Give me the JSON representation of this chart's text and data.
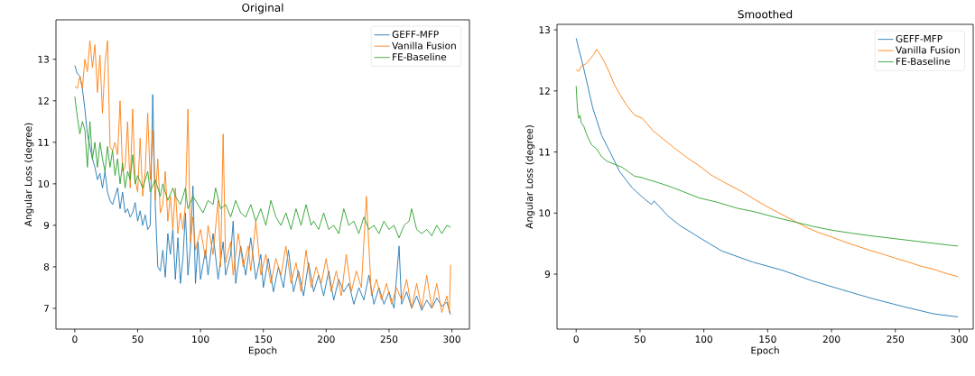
{
  "chart_data": [
    {
      "type": "line",
      "title": "Original",
      "xlabel": "Epoch",
      "ylabel": "Angular Loss (degree)",
      "xlim": [
        -15,
        314
      ],
      "ylim": [
        6.5,
        13.95
      ],
      "xticks": [
        0,
        50,
        100,
        150,
        200,
        250,
        300
      ],
      "yticks": [
        7,
        8,
        9,
        10,
        11,
        12,
        13
      ],
      "legend": "top right",
      "grid": false,
      "line_style": "solid",
      "series": [
        {
          "name": "GEFF-MFP",
          "color": "#1f77b4",
          "x": [
            0,
            2,
            4,
            6,
            8,
            10,
            12,
            14,
            16,
            18,
            20,
            22,
            24,
            26,
            28,
            30,
            32,
            34,
            36,
            38,
            40,
            42,
            44,
            46,
            48,
            50,
            52,
            54,
            56,
            58,
            60,
            62,
            64,
            66,
            68,
            70,
            72,
            74,
            76,
            78,
            80,
            82,
            84,
            86,
            88,
            90,
            92,
            94,
            96,
            98,
            100,
            104,
            106,
            110,
            114,
            118,
            120,
            124,
            126,
            128,
            132,
            136,
            140,
            144,
            148,
            150,
            154,
            158,
            162,
            166,
            170,
            174,
            178,
            182,
            186,
            190,
            194,
            198,
            202,
            206,
            210,
            214,
            218,
            222,
            226,
            230,
            234,
            238,
            242,
            246,
            250,
            254,
            258,
            260,
            264,
            268,
            272,
            276,
            280,
            284,
            288,
            292,
            296,
            299
          ],
          "values": [
            12.85,
            12.65,
            12.6,
            12.3,
            11.8,
            11.2,
            10.9,
            10.6,
            10.4,
            10.1,
            10.25,
            9.9,
            10.3,
            9.8,
            9.6,
            9.5,
            9.7,
            9.9,
            9.4,
            9.8,
            9.3,
            9.4,
            9.2,
            9.3,
            9.55,
            9.1,
            9.35,
            9.0,
            9.25,
            8.9,
            9.0,
            12.15,
            9.5,
            8.0,
            7.9,
            8.4,
            7.75,
            8.8,
            8.3,
            8.9,
            7.7,
            8.7,
            7.6,
            8.2,
            9.3,
            7.8,
            8.5,
            9.95,
            7.6,
            8.6,
            7.7,
            8.4,
            7.8,
            8.8,
            7.7,
            8.6,
            7.8,
            8.3,
            9.1,
            7.6,
            8.5,
            7.8,
            8.7,
            7.7,
            8.3,
            7.5,
            8.2,
            7.4,
            8.0,
            7.5,
            8.4,
            7.4,
            7.9,
            7.3,
            8.1,
            7.4,
            7.8,
            7.3,
            7.9,
            7.2,
            7.7,
            7.4,
            7.6,
            7.1,
            7.5,
            7.2,
            7.8,
            7.1,
            7.5,
            7.1,
            7.4,
            7.0,
            8.5,
            7.1,
            7.4,
            7.0,
            7.3,
            6.95,
            7.2,
            7.0,
            7.25,
            7.05,
            7.15,
            6.85
          ]
        },
        {
          "name": "Vanilla Fusion",
          "color": "#ff7f0e",
          "x": [
            0,
            2,
            4,
            6,
            8,
            10,
            12,
            14,
            16,
            18,
            20,
            22,
            24,
            26,
            28,
            30,
            32,
            34,
            36,
            38,
            40,
            42,
            44,
            46,
            48,
            50,
            52,
            54,
            56,
            58,
            60,
            62,
            64,
            66,
            68,
            70,
            72,
            74,
            76,
            78,
            80,
            82,
            84,
            86,
            88,
            90,
            92,
            94,
            96,
            100,
            104,
            106,
            110,
            114,
            116,
            118,
            120,
            124,
            126,
            130,
            134,
            138,
            140,
            144,
            148,
            152,
            156,
            160,
            164,
            168,
            172,
            176,
            180,
            184,
            188,
            192,
            196,
            200,
            204,
            208,
            212,
            216,
            220,
            224,
            228,
            232,
            236,
            240,
            244,
            248,
            252,
            256,
            260,
            264,
            268,
            272,
            276,
            280,
            284,
            288,
            292,
            296,
            298,
            299
          ],
          "values": [
            12.35,
            12.3,
            12.6,
            12.3,
            13.0,
            12.7,
            13.45,
            12.8,
            13.35,
            12.2,
            13.1,
            11.7,
            12.9,
            13.45,
            10.9,
            10.8,
            11.0,
            10.7,
            12.0,
            10.3,
            10.4,
            11.5,
            9.9,
            11.8,
            10.1,
            9.8,
            11.1,
            9.7,
            10.3,
            11.7,
            10.1,
            11.3,
            9.6,
            10.6,
            9.3,
            9.5,
            10.3,
            9.1,
            9.7,
            8.9,
            9.9,
            8.8,
            9.3,
            8.9,
            9.5,
            11.8,
            8.6,
            9.2,
            8.4,
            8.9,
            8.2,
            9.0,
            8.3,
            9.6,
            8.0,
            11.2,
            8.1,
            8.6,
            7.8,
            8.8,
            8.0,
            8.5,
            7.9,
            9.1,
            7.8,
            8.3,
            7.6,
            8.2,
            7.8,
            8.5,
            7.6,
            8.1,
            7.4,
            8.4,
            7.5,
            8.0,
            7.6,
            8.2,
            7.4,
            7.9,
            7.3,
            8.3,
            7.4,
            7.9,
            7.5,
            9.7,
            7.3,
            7.7,
            7.2,
            7.6,
            7.1,
            7.5,
            7.2,
            7.7,
            7.0,
            7.6,
            7.0,
            7.8,
            7.0,
            7.6,
            6.9,
            7.3,
            6.9,
            8.05
          ]
        },
        {
          "name": "FE-Baseline",
          "color": "#2ca02c",
          "x": [
            0,
            2,
            4,
            6,
            8,
            10,
            12,
            14,
            16,
            18,
            20,
            22,
            24,
            26,
            28,
            30,
            32,
            34,
            36,
            38,
            40,
            42,
            44,
            46,
            48,
            50,
            54,
            58,
            60,
            64,
            68,
            70,
            74,
            78,
            80,
            84,
            88,
            90,
            94,
            98,
            102,
            106,
            110,
            112,
            116,
            120,
            124,
            128,
            132,
            136,
            140,
            144,
            148,
            152,
            156,
            160,
            164,
            168,
            172,
            176,
            180,
            184,
            188,
            190,
            194,
            198,
            202,
            206,
            210,
            214,
            218,
            222,
            226,
            230,
            234,
            238,
            242,
            246,
            250,
            254,
            258,
            262,
            266,
            268,
            272,
            276,
            280,
            284,
            288,
            292,
            296,
            299
          ],
          "values": [
            12.1,
            11.6,
            11.2,
            11.5,
            11.3,
            10.4,
            11.5,
            10.6,
            11.0,
            10.4,
            11.0,
            10.6,
            10.3,
            10.9,
            10.4,
            10.8,
            10.2,
            10.6,
            10.0,
            10.5,
            9.9,
            10.3,
            10.1,
            10.7,
            10.0,
            10.2,
            9.9,
            10.3,
            9.8,
            10.1,
            9.7,
            10.0,
            9.6,
            9.9,
            9.7,
            9.5,
            9.9,
            9.4,
            9.7,
            9.5,
            9.3,
            9.6,
            9.5,
            9.9,
            9.4,
            9.5,
            9.2,
            9.6,
            9.3,
            9.2,
            9.5,
            9.1,
            9.4,
            9.0,
            9.6,
            9.2,
            9.0,
            9.3,
            8.9,
            9.4,
            9.0,
            9.5,
            9.0,
            9.1,
            8.9,
            9.3,
            8.9,
            9.0,
            8.8,
            9.4,
            9.0,
            9.1,
            8.8,
            9.2,
            8.9,
            9.0,
            8.8,
            9.1,
            8.9,
            9.0,
            8.7,
            9.0,
            9.1,
            9.4,
            8.9,
            8.8,
            8.9,
            8.75,
            9.0,
            8.8,
            9.0,
            8.95
          ]
        }
      ]
    },
    {
      "type": "line",
      "title": "Smoothed",
      "xlabel": "Epoch",
      "ylabel": "Angular Loss (degree)",
      "xlim": [
        -15,
        311
      ],
      "ylim": [
        8.1,
        13.09
      ],
      "xticks": [
        0,
        50,
        100,
        150,
        200,
        250,
        300
      ],
      "yticks": [
        9,
        10,
        11,
        12,
        13
      ],
      "legend": "top right",
      "grid": false,
      "line_style": "solid",
      "series": [
        {
          "name": "GEFF-MFP",
          "color": "#1f77b4",
          "x": [
            0,
            6,
            13,
            20,
            27,
            34,
            44,
            53,
            59,
            61,
            72,
            81,
            98,
            114,
            138,
            162,
            185,
            209,
            232,
            256,
            280,
            299
          ],
          "values": [
            12.86,
            12.36,
            11.72,
            11.27,
            10.98,
            10.68,
            10.41,
            10.24,
            10.14,
            10.2,
            9.95,
            9.8,
            9.58,
            9.38,
            9.2,
            9.06,
            8.89,
            8.74,
            8.6,
            8.47,
            8.35,
            8.3
          ]
        },
        {
          "name": "Vanilla Fusion",
          "color": "#ff7f0e",
          "x": [
            0,
            2,
            4,
            8,
            12,
            14,
            16,
            18,
            22,
            26,
            30,
            34,
            40,
            46,
            52,
            60,
            66,
            76,
            86,
            96,
            106,
            118,
            130,
            140,
            150,
            160,
            170,
            180,
            190,
            200,
            210,
            220,
            230,
            240,
            250,
            260,
            270,
            280,
            290,
            299
          ],
          "values": [
            12.35,
            12.32,
            12.4,
            12.45,
            12.55,
            12.6,
            12.68,
            12.62,
            12.48,
            12.3,
            12.1,
            11.95,
            11.75,
            11.6,
            11.55,
            11.35,
            11.25,
            11.08,
            10.92,
            10.78,
            10.62,
            10.48,
            10.35,
            10.22,
            10.1,
            9.99,
            9.88,
            9.77,
            9.68,
            9.61,
            9.53,
            9.46,
            9.39,
            9.33,
            9.26,
            9.2,
            9.13,
            9.08,
            9.01,
            8.96
          ]
        },
        {
          "name": "FE-Baseline",
          "color": "#2ca02c",
          "x": [
            0,
            1,
            2,
            3,
            4,
            6,
            8,
            10,
            12,
            16,
            20,
            24,
            30,
            36,
            42,
            46,
            50,
            56,
            64,
            74,
            84,
            96,
            110,
            126,
            140,
            156,
            172,
            186,
            200,
            216,
            230,
            250,
            270,
            290,
            299
          ],
          "values": [
            12.08,
            11.7,
            11.55,
            11.6,
            11.48,
            11.42,
            11.3,
            11.2,
            11.12,
            11.05,
            10.92,
            10.85,
            10.8,
            10.75,
            10.66,
            10.6,
            10.59,
            10.55,
            10.5,
            10.43,
            10.35,
            10.25,
            10.18,
            10.08,
            10.02,
            9.93,
            9.85,
            9.78,
            9.72,
            9.67,
            9.63,
            9.58,
            9.53,
            9.48,
            9.46
          ]
        }
      ]
    }
  ]
}
